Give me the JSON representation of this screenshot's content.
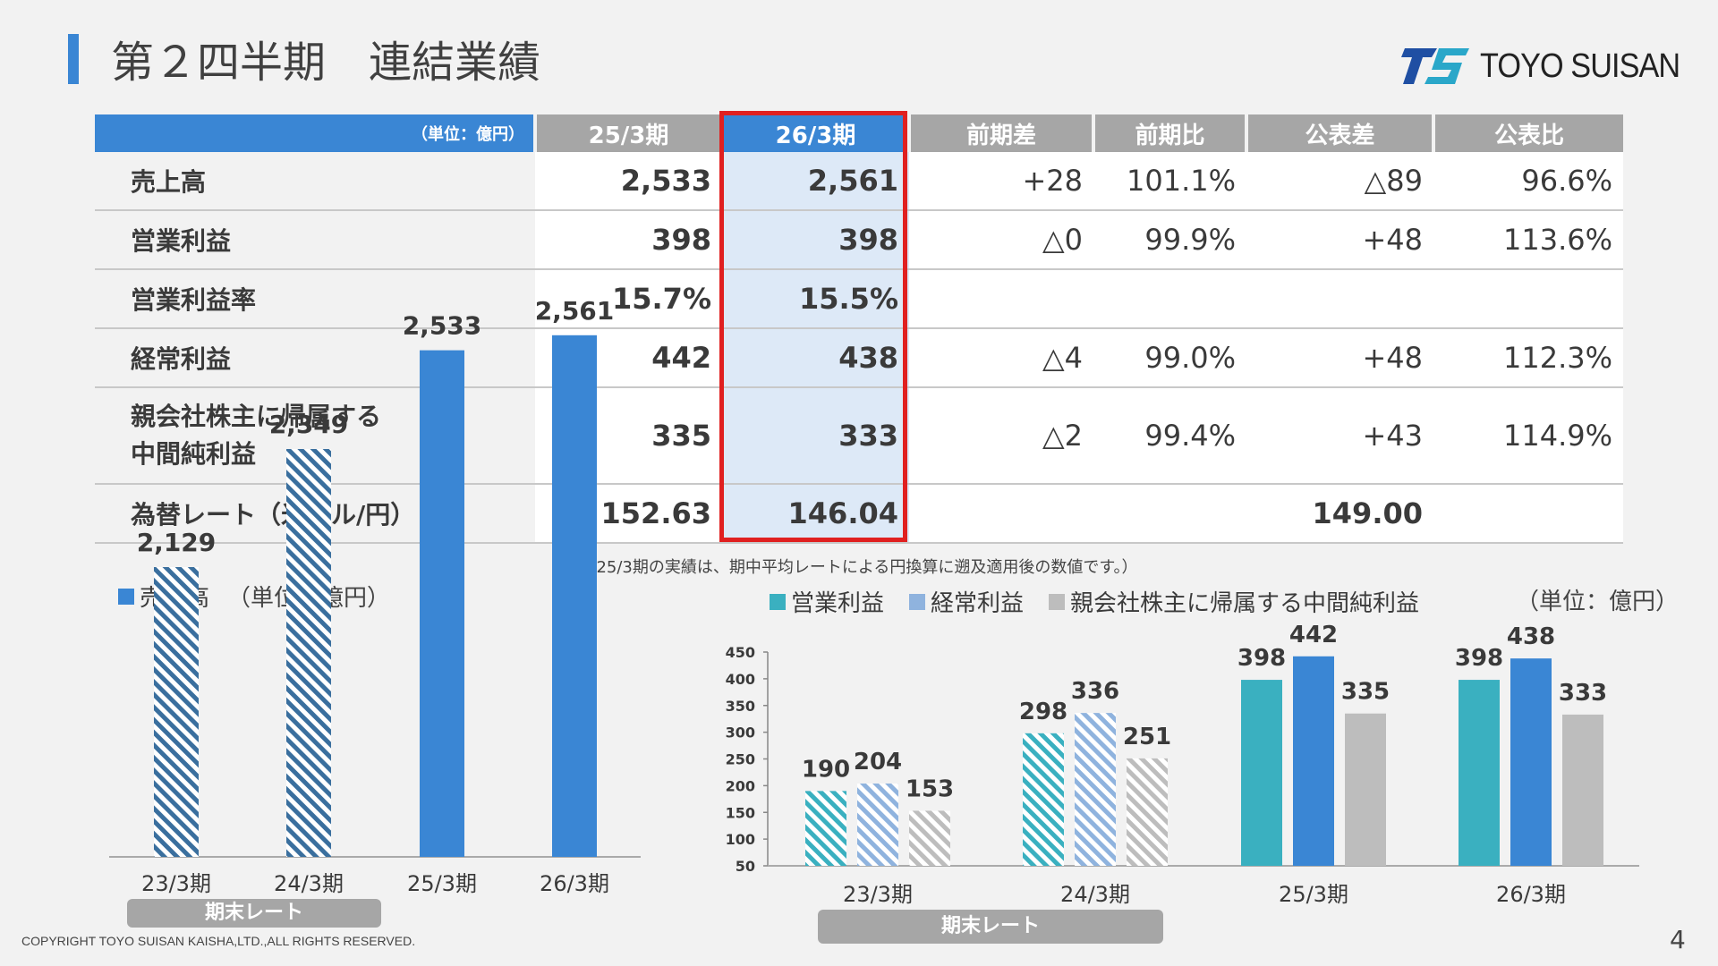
{
  "title": "第２四半期　連結業績",
  "logo_text": "TOYO SUISAN",
  "table": {
    "unit_label": "（単位：億円）",
    "headers": [
      "25/3期",
      "26/3期",
      "前期差",
      "前期比",
      "公表差",
      "公表比"
    ],
    "rows": [
      {
        "label": "売上高",
        "values": [
          "2,533",
          "2,561",
          "+28",
          "101.1%",
          "△89",
          "96.6%"
        ]
      },
      {
        "label": "営業利益",
        "values": [
          "398",
          "398",
          "△0",
          "99.9%",
          "+48",
          "113.6%"
        ]
      },
      {
        "label": "営業利益率",
        "values": [
          "15.7%",
          "15.5%",
          "",
          "",
          "",
          ""
        ]
      },
      {
        "label": "経常利益",
        "values": [
          "442",
          "438",
          "△4",
          "99.0%",
          "+48",
          "112.3%"
        ]
      },
      {
        "label_lines": [
          "親会社株主に帰属する",
          "中間純利益"
        ],
        "values": [
          "335",
          "333",
          "△2",
          "99.4%",
          "+43",
          "114.9%"
        ]
      },
      {
        "label": "為替レート（米ドル/円）",
        "values": [
          "152.63",
          "146.04",
          "",
          "",
          "149.00",
          ""
        ]
      }
    ]
  },
  "footnote": "（25/3期の実績は、期中平均レートによる円換算に遡及適用後の数値です。）",
  "left_chart": {
    "legend": "売上高",
    "unit": "（単位：億円）",
    "pill": "期末レート"
  },
  "right_chart": {
    "unit": "（単位：億円）",
    "pill": "期末レート"
  },
  "colors": {
    "blue": "#3a86d4",
    "teal": "#3ab0c0",
    "light_blue": "#8fb3de",
    "gray": "#bdbdbd",
    "red": "#e02020",
    "header_gray": "#a6a6a6"
  },
  "chart_data": [
    {
      "type": "bar",
      "categories": [
        "23/3期",
        "24/3期",
        "25/3期",
        "26/3期"
      ],
      "series": [
        {
          "name": "売上高",
          "values": [
            2129,
            2349,
            2533,
            2561
          ]
        }
      ],
      "data_labels": [
        "2,129",
        "2,349",
        "2,533",
        "2,561"
      ],
      "hatched_categories": [
        "23/3期",
        "24/3期"
      ],
      "legend": "top-left"
    },
    {
      "type": "bar",
      "categories": [
        "23/3期",
        "24/3期",
        "25/3期",
        "26/3期"
      ],
      "series": [
        {
          "name": "営業利益",
          "values": [
            190,
            298,
            398,
            398
          ]
        },
        {
          "name": "経常利益",
          "values": [
            204,
            336,
            442,
            438
          ]
        },
        {
          "name": "親会社株主に帰属する中間純利益",
          "values": [
            153,
            251,
            335,
            333
          ]
        }
      ],
      "ylim": [
        50,
        450
      ],
      "yticks": [
        50,
        100,
        150,
        200,
        250,
        300,
        350,
        400,
        450
      ],
      "hatched_categories": [
        "23/3期",
        "24/3期"
      ],
      "legend": "top"
    }
  ]
}
